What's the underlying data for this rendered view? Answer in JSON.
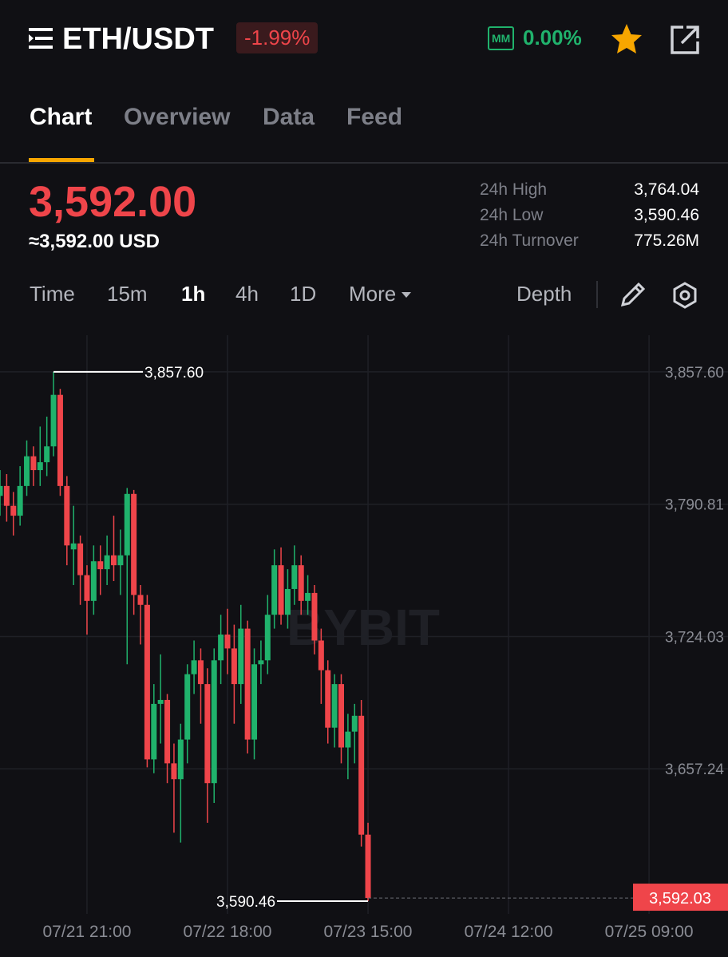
{
  "header": {
    "pair": "ETH/USDT",
    "change": "-1.99%",
    "mm_badge": "MM",
    "mm_value": "0.00%"
  },
  "tabs": [
    "Chart",
    "Overview",
    "Data",
    "Feed"
  ],
  "price": {
    "last": "3,592.00",
    "usd": "≈3,592.00 USD"
  },
  "stats": [
    {
      "label": "24h High",
      "value": "3,764.04"
    },
    {
      "label": "24h Low",
      "value": "3,590.46"
    },
    {
      "label": "24h Turnover",
      "value": "775.26M"
    }
  ],
  "intervals": [
    "Time",
    "15m",
    "1h",
    "4h",
    "1D",
    "More"
  ],
  "depth": "Depth",
  "chart_data": {
    "type": "candlestick",
    "watermark": "BYBIT",
    "up_color": "#20b26c",
    "down_color": "#ef454a",
    "grid": true,
    "xlim": [
      0,
      108.8
    ],
    "ylim": [
      3584,
      3876.1
    ],
    "yticks": [
      {
        "value": 3857.6,
        "label": "3,857.60"
      },
      {
        "value": 3790.81,
        "label": "3,790.81"
      },
      {
        "value": 3724.03,
        "label": "3,724.03"
      },
      {
        "value": 3657.24,
        "label": "3,657.24"
      }
    ],
    "xticks": [
      {
        "value": 13,
        "label": "07/21 21:00"
      },
      {
        "value": 34,
        "label": "07/22 18:00"
      },
      {
        "value": 55,
        "label": "07/23 15:00"
      },
      {
        "value": 76,
        "label": "07/24 12:00"
      },
      {
        "value": 97,
        "label": "07/25 09:00"
      }
    ],
    "high_marker": {
      "value": 3857.6,
      "label": "3,857.60"
    },
    "low_marker": {
      "value": 3590.46,
      "label": "3,590.46"
    },
    "last_price": {
      "value": 3592.03,
      "label": "3,592.03"
    },
    "open": [
      3795,
      3800,
      3790,
      3785,
      3800,
      3815,
      3808,
      3812,
      3820,
      3846,
      3800,
      3768,
      3771,
      3755,
      3742,
      3762,
      3758,
      3765,
      3760,
      3765,
      3796,
      3745,
      3740,
      3662,
      3690,
      3692,
      3660,
      3652,
      3672,
      3705,
      3712,
      3700,
      3650,
      3712,
      3725,
      3718,
      3700,
      3728,
      3672,
      3710,
      3712,
      3735,
      3760,
      3735,
      3748,
      3760,
      3742,
      3746,
      3722,
      3707,
      3678,
      3700,
      3668,
      3676,
      3684,
      3624
    ],
    "high": [
      3808,
      3806,
      3797,
      3810,
      3823,
      3820,
      3830,
      3835,
      3857.6,
      3849,
      3805,
      3790,
      3775,
      3760,
      3770,
      3770,
      3775,
      3785,
      3778,
      3799,
      3798,
      3750,
      3745,
      3700,
      3715,
      3695,
      3670,
      3680,
      3710,
      3722,
      3718,
      3708,
      3718,
      3735,
      3738,
      3730,
      3740,
      3732,
      3718,
      3722,
      3745,
      3768,
      3769,
      3758,
      3770,
      3765,
      3755,
      3750,
      3728,
      3712,
      3705,
      3705,
      3685,
      3690,
      3692,
      3630
    ],
    "low": [
      3785,
      3782,
      3775,
      3780,
      3795,
      3800,
      3800,
      3805,
      3815,
      3795,
      3760,
      3750,
      3740,
      3725,
      3735,
      3745,
      3750,
      3752,
      3745,
      3710,
      3735,
      3720,
      3658,
      3655,
      3670,
      3650,
      3625,
      3620,
      3660,
      3695,
      3680,
      3630,
      3640,
      3700,
      3705,
      3680,
      3690,
      3665,
      3662,
      3700,
      3705,
      3728,
      3730,
      3728,
      3740,
      3735,
      3735,
      3715,
      3690,
      3670,
      3668,
      3660,
      3652,
      3660,
      3618,
      3590.46
    ],
    "close": [
      3800,
      3790,
      3785,
      3800,
      3815,
      3808,
      3812,
      3820,
      3846,
      3800,
      3770,
      3771,
      3755,
      3742,
      3762,
      3758,
      3765,
      3760,
      3765,
      3796,
      3745,
      3740,
      3662,
      3690,
      3692,
      3660,
      3652,
      3672,
      3705,
      3712,
      3700,
      3650,
      3712,
      3725,
      3718,
      3700,
      3728,
      3672,
      3710,
      3712,
      3735,
      3760,
      3735,
      3748,
      3760,
      3742,
      3746,
      3722,
      3707,
      3678,
      3700,
      3668,
      3676,
      3684,
      3624,
      3592.03
    ]
  }
}
